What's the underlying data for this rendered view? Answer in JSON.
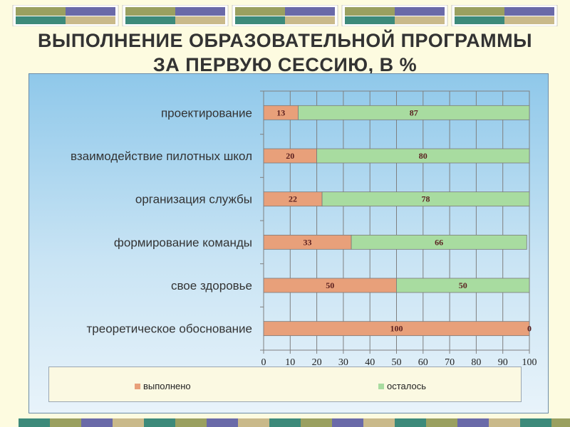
{
  "header": {
    "title_line1": "ВЫПОЛНЕНИЕ ОБРАЗОВАТЕЛЬНОЙ ПРОГРАММЫ",
    "title_line2": "ЗА ПЕРВУЮ СЕССИЮ, В %"
  },
  "colors": {
    "done": "#e8a07a",
    "remaining": "#a8dca0",
    "bar_outline": "#7a7a7a",
    "deco_teal": "#3d8a7a",
    "deco_olive": "#9aa060",
    "deco_purple": "#6a6aa8",
    "deco_tan": "#c9b98a"
  },
  "chart_data": {
    "type": "bar",
    "orientation": "horizontal",
    "stacked": true,
    "categories": [
      "проектирование",
      "взаимодействие пилотных школ",
      "организация службы",
      "формирование команды",
      "свое здоровье",
      "треоретическое обоснование"
    ],
    "series": [
      {
        "name": "выполнено",
        "values": [
          13,
          20,
          22,
          33,
          50,
          100
        ]
      },
      {
        "name": "осталось",
        "values": [
          87,
          80,
          78,
          66,
          50,
          0
        ]
      }
    ],
    "data_labels": {
      "выполнено": [
        "13",
        "20",
        "22",
        "33",
        "50",
        "100"
      ],
      "осталось": [
        "87",
        "80",
        "78",
        "66",
        "50",
        "0"
      ]
    },
    "xlim": [
      0,
      100
    ],
    "xticks": [
      "0",
      "10",
      "20",
      "30",
      "40",
      "50",
      "60",
      "70",
      "80",
      "90",
      "100"
    ],
    "grid": true,
    "legend": {
      "position": "bottom",
      "items": [
        "выполнено",
        "осталось"
      ]
    }
  }
}
